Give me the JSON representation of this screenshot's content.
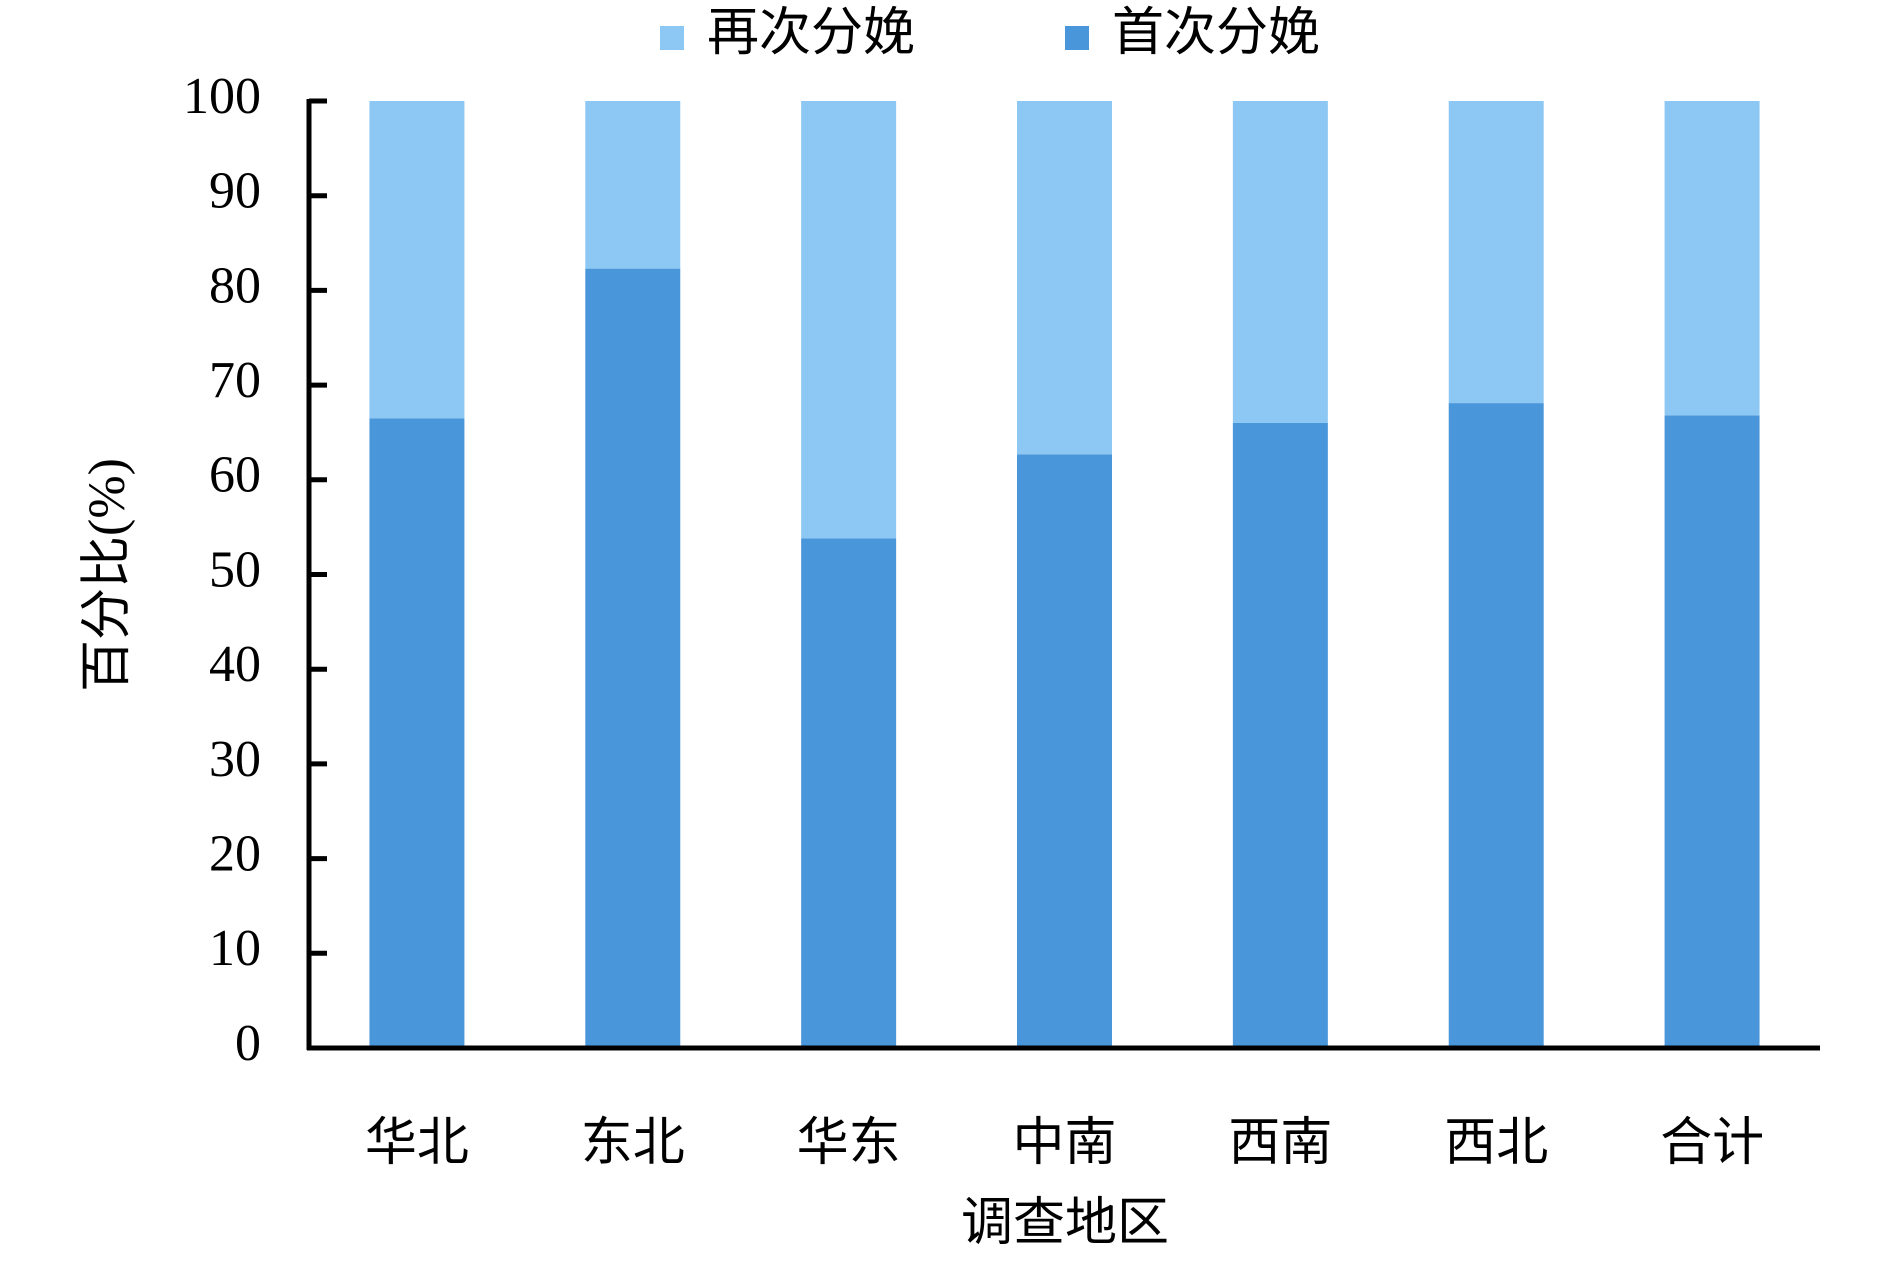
{
  "chart_data": {
    "type": "stacked_bar",
    "x_label": "调查地区",
    "y_label": "百分比(%)",
    "categories": [
      "华北",
      "东北",
      "华东",
      "中南",
      "西南",
      "西北",
      "合计"
    ],
    "series": [
      {
        "name": "首次分娩",
        "color": "#4a96da",
        "values": [
          66.5,
          82.3,
          53.8,
          62.7,
          66.0,
          68.1,
          66.8
        ]
      },
      {
        "name": "再次分娩",
        "color": "#8cc8f3",
        "values": [
          33.5,
          17.7,
          46.2,
          37.3,
          34.0,
          31.9,
          33.2
        ]
      }
    ],
    "ylim": [
      0,
      100
    ],
    "yticks": [
      0,
      10,
      20,
      30,
      40,
      50,
      60,
      70,
      80,
      90,
      100
    ],
    "legend": "top"
  }
}
